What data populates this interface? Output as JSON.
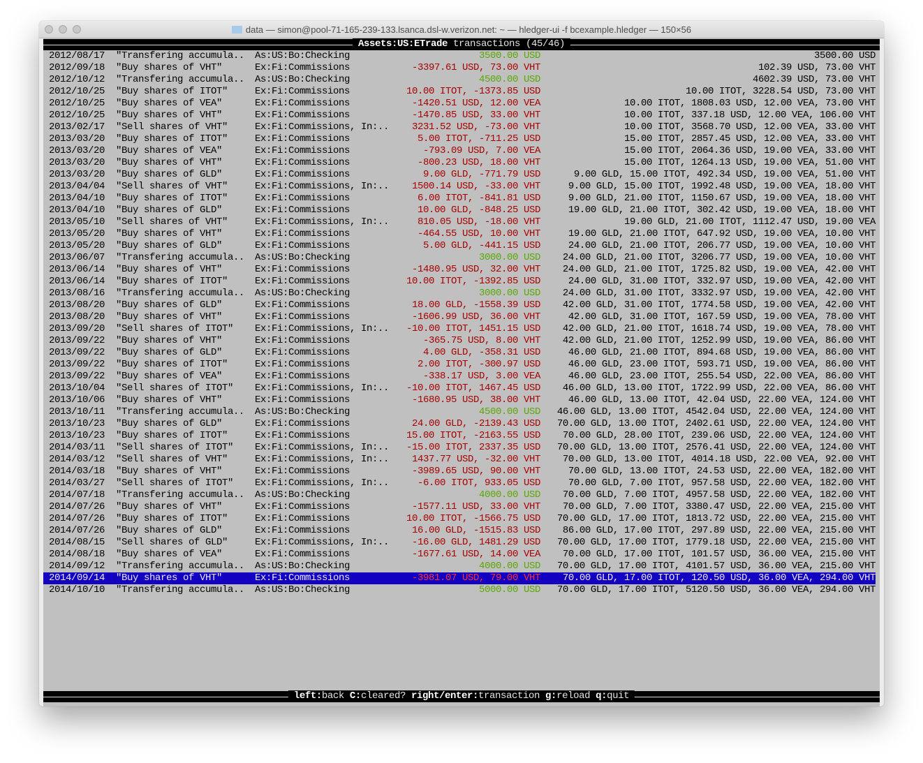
{
  "window": {
    "title": "data — simon@pool-71-165-239-133.lsanca.dsl-w.verizon.net: ~ — hledger-ui -f bcexample.hledger — 150×56"
  },
  "header": {
    "account": "Assets:US:ETrade",
    "suffix": " transactions (45/46)"
  },
  "colors": {
    "positive": "#5aa800",
    "negative": "#a80000",
    "selection": "#1400c0",
    "background": "#c0c0c0"
  },
  "selected_index": 44,
  "rows": [
    {
      "date": "2012/08/17",
      "desc": "\"Transfering accumula..",
      "acct": "As:US:Bo:Checking",
      "amt": "3500.00 USD",
      "bal": "3500.00 USD",
      "sign": "green"
    },
    {
      "date": "2012/09/18",
      "desc": "\"Buy shares of VHT\"",
      "acct": "Ex:Fi:Commissions",
      "amt": "-3397.61 USD, 73.00 VHT",
      "bal": "102.39 USD, 73.00 VHT",
      "sign": "red"
    },
    {
      "date": "2012/10/12",
      "desc": "\"Transfering accumula..",
      "acct": "As:US:Bo:Checking",
      "amt": "4500.00 USD",
      "bal": "4602.39 USD, 73.00 VHT",
      "sign": "green"
    },
    {
      "date": "2012/10/25",
      "desc": "\"Buy shares of ITOT\"",
      "acct": "Ex:Fi:Commissions",
      "amt": "10.00 ITOT, -1373.85 USD",
      "bal": "10.00 ITOT, 3228.54 USD, 73.00 VHT",
      "sign": "red"
    },
    {
      "date": "2012/10/25",
      "desc": "\"Buy shares of VEA\"",
      "acct": "Ex:Fi:Commissions",
      "amt": "-1420.51 USD, 12.00 VEA",
      "bal": "10.00 ITOT, 1808.03 USD, 12.00 VEA, 73.00 VHT",
      "sign": "red"
    },
    {
      "date": "2012/10/25",
      "desc": "\"Buy shares of VHT\"",
      "acct": "Ex:Fi:Commissions",
      "amt": "-1470.85 USD, 33.00 VHT",
      "bal": "10.00 ITOT, 337.18 USD, 12.00 VEA, 106.00 VHT",
      "sign": "red"
    },
    {
      "date": "2013/02/17",
      "desc": "\"Sell shares of VHT\"",
      "acct": "Ex:Fi:Commissions, In:..",
      "amt": "3231.52 USD, -73.00 VHT",
      "bal": "10.00 ITOT, 3568.70 USD, 12.00 VEA, 33.00 VHT",
      "sign": "red"
    },
    {
      "date": "2013/03/20",
      "desc": "\"Buy shares of ITOT\"",
      "acct": "Ex:Fi:Commissions",
      "amt": "5.00 ITOT, -711.25 USD",
      "bal": "15.00 ITOT, 2857.45 USD, 12.00 VEA, 33.00 VHT",
      "sign": "red"
    },
    {
      "date": "2013/03/20",
      "desc": "\"Buy shares of VEA\"",
      "acct": "Ex:Fi:Commissions",
      "amt": "-793.09 USD, 7.00 VEA",
      "bal": "15.00 ITOT, 2064.36 USD, 19.00 VEA, 33.00 VHT",
      "sign": "red"
    },
    {
      "date": "2013/03/20",
      "desc": "\"Buy shares of VHT\"",
      "acct": "Ex:Fi:Commissions",
      "amt": "-800.23 USD, 18.00 VHT",
      "bal": "15.00 ITOT, 1264.13 USD, 19.00 VEA, 51.00 VHT",
      "sign": "red"
    },
    {
      "date": "2013/03/20",
      "desc": "\"Buy shares of GLD\"",
      "acct": "Ex:Fi:Commissions",
      "amt": "9.00 GLD, -771.79 USD",
      "bal": "9.00 GLD, 15.00 ITOT, 492.34 USD, 19.00 VEA, 51.00 VHT",
      "sign": "red"
    },
    {
      "date": "2013/04/04",
      "desc": "\"Sell shares of VHT\"",
      "acct": "Ex:Fi:Commissions, In:..",
      "amt": "1500.14 USD, -33.00 VHT",
      "bal": "9.00 GLD, 15.00 ITOT, 1992.48 USD, 19.00 VEA, 18.00 VHT",
      "sign": "red"
    },
    {
      "date": "2013/04/10",
      "desc": "\"Buy shares of ITOT\"",
      "acct": "Ex:Fi:Commissions",
      "amt": "6.00 ITOT, -841.81 USD",
      "bal": "9.00 GLD, 21.00 ITOT, 1150.67 USD, 19.00 VEA, 18.00 VHT",
      "sign": "red"
    },
    {
      "date": "2013/04/10",
      "desc": "\"Buy shares of GLD\"",
      "acct": "Ex:Fi:Commissions",
      "amt": "10.00 GLD, -848.25 USD",
      "bal": "19.00 GLD, 21.00 ITOT, 302.42 USD, 19.00 VEA, 18.00 VHT",
      "sign": "red"
    },
    {
      "date": "2013/05/10",
      "desc": "\"Sell shares of VHT\"",
      "acct": "Ex:Fi:Commissions, In:..",
      "amt": "810.05 USD, -18.00 VHT",
      "bal": "19.00 GLD, 21.00 ITOT, 1112.47 USD, 19.00 VEA",
      "sign": "red"
    },
    {
      "date": "2013/05/20",
      "desc": "\"Buy shares of VHT\"",
      "acct": "Ex:Fi:Commissions",
      "amt": "-464.55 USD, 10.00 VHT",
      "bal": "19.00 GLD, 21.00 ITOT, 647.92 USD, 19.00 VEA, 10.00 VHT",
      "sign": "red"
    },
    {
      "date": "2013/05/20",
      "desc": "\"Buy shares of GLD\"",
      "acct": "Ex:Fi:Commissions",
      "amt": "5.00 GLD, -441.15 USD",
      "bal": "24.00 GLD, 21.00 ITOT, 206.77 USD, 19.00 VEA, 10.00 VHT",
      "sign": "red"
    },
    {
      "date": "2013/06/07",
      "desc": "\"Transfering accumula..",
      "acct": "As:US:Bo:Checking",
      "amt": "3000.00 USD",
      "bal": "24.00 GLD, 21.00 ITOT, 3206.77 USD, 19.00 VEA, 10.00 VHT",
      "sign": "green"
    },
    {
      "date": "2013/06/14",
      "desc": "\"Buy shares of VHT\"",
      "acct": "Ex:Fi:Commissions",
      "amt": "-1480.95 USD, 32.00 VHT",
      "bal": "24.00 GLD, 21.00 ITOT, 1725.82 USD, 19.00 VEA, 42.00 VHT",
      "sign": "red"
    },
    {
      "date": "2013/06/14",
      "desc": "\"Buy shares of ITOT\"",
      "acct": "Ex:Fi:Commissions",
      "amt": "10.00 ITOT, -1392.85 USD",
      "bal": "24.00 GLD, 31.00 ITOT, 332.97 USD, 19.00 VEA, 42.00 VHT",
      "sign": "red"
    },
    {
      "date": "2013/08/16",
      "desc": "\"Transfering accumula..",
      "acct": "As:US:Bo:Checking",
      "amt": "3000.00 USD",
      "bal": "24.00 GLD, 31.00 ITOT, 3332.97 USD, 19.00 VEA, 42.00 VHT",
      "sign": "green"
    },
    {
      "date": "2013/08/20",
      "desc": "\"Buy shares of GLD\"",
      "acct": "Ex:Fi:Commissions",
      "amt": "18.00 GLD, -1558.39 USD",
      "bal": "42.00 GLD, 31.00 ITOT, 1774.58 USD, 19.00 VEA, 42.00 VHT",
      "sign": "red"
    },
    {
      "date": "2013/08/20",
      "desc": "\"Buy shares of VHT\"",
      "acct": "Ex:Fi:Commissions",
      "amt": "-1606.99 USD, 36.00 VHT",
      "bal": "42.00 GLD, 31.00 ITOT, 167.59 USD, 19.00 VEA, 78.00 VHT",
      "sign": "red"
    },
    {
      "date": "2013/09/20",
      "desc": "\"Sell shares of ITOT\"",
      "acct": "Ex:Fi:Commissions, In:..",
      "amt": "-10.00 ITOT, 1451.15 USD",
      "bal": "42.00 GLD, 21.00 ITOT, 1618.74 USD, 19.00 VEA, 78.00 VHT",
      "sign": "red"
    },
    {
      "date": "2013/09/22",
      "desc": "\"Buy shares of VHT\"",
      "acct": "Ex:Fi:Commissions",
      "amt": "-365.75 USD, 8.00 VHT",
      "bal": "42.00 GLD, 21.00 ITOT, 1252.99 USD, 19.00 VEA, 86.00 VHT",
      "sign": "red"
    },
    {
      "date": "2013/09/22",
      "desc": "\"Buy shares of GLD\"",
      "acct": "Ex:Fi:Commissions",
      "amt": "4.00 GLD, -358.31 USD",
      "bal": "46.00 GLD, 21.00 ITOT, 894.68 USD, 19.00 VEA, 86.00 VHT",
      "sign": "red"
    },
    {
      "date": "2013/09/22",
      "desc": "\"Buy shares of ITOT\"",
      "acct": "Ex:Fi:Commissions",
      "amt": "2.00 ITOT, -300.97 USD",
      "bal": "46.00 GLD, 23.00 ITOT, 593.71 USD, 19.00 VEA, 86.00 VHT",
      "sign": "red"
    },
    {
      "date": "2013/09/22",
      "desc": "\"Buy shares of VEA\"",
      "acct": "Ex:Fi:Commissions",
      "amt": "-338.17 USD, 3.00 VEA",
      "bal": "46.00 GLD, 23.00 ITOT, 255.54 USD, 22.00 VEA, 86.00 VHT",
      "sign": "red"
    },
    {
      "date": "2013/10/04",
      "desc": "\"Sell shares of ITOT\"",
      "acct": "Ex:Fi:Commissions, In:..",
      "amt": "-10.00 ITOT, 1467.45 USD",
      "bal": "46.00 GLD, 13.00 ITOT, 1722.99 USD, 22.00 VEA, 86.00 VHT",
      "sign": "red"
    },
    {
      "date": "2013/10/06",
      "desc": "\"Buy shares of VHT\"",
      "acct": "Ex:Fi:Commissions",
      "amt": "-1680.95 USD, 38.00 VHT",
      "bal": "46.00 GLD, 13.00 ITOT, 42.04 USD, 22.00 VEA, 124.00 VHT",
      "sign": "red"
    },
    {
      "date": "2013/10/11",
      "desc": "\"Transfering accumula..",
      "acct": "As:US:Bo:Checking",
      "amt": "4500.00 USD",
      "bal": "46.00 GLD, 13.00 ITOT, 4542.04 USD, 22.00 VEA, 124.00 VHT",
      "sign": "green"
    },
    {
      "date": "2013/10/23",
      "desc": "\"Buy shares of GLD\"",
      "acct": "Ex:Fi:Commissions",
      "amt": "24.00 GLD, -2139.43 USD",
      "bal": "70.00 GLD, 13.00 ITOT, 2402.61 USD, 22.00 VEA, 124.00 VHT",
      "sign": "red"
    },
    {
      "date": "2013/10/23",
      "desc": "\"Buy shares of ITOT\"",
      "acct": "Ex:Fi:Commissions",
      "amt": "15.00 ITOT, -2163.55 USD",
      "bal": "70.00 GLD, 28.00 ITOT, 239.06 USD, 22.00 VEA, 124.00 VHT",
      "sign": "red"
    },
    {
      "date": "2014/03/11",
      "desc": "\"Sell shares of ITOT\"",
      "acct": "Ex:Fi:Commissions, In:..",
      "amt": "-15.00 ITOT, 2337.35 USD",
      "bal": "70.00 GLD, 13.00 ITOT, 2576.41 USD, 22.00 VEA, 124.00 VHT",
      "sign": "red"
    },
    {
      "date": "2014/03/12",
      "desc": "\"Sell shares of VHT\"",
      "acct": "Ex:Fi:Commissions, In:..",
      "amt": "1437.77 USD, -32.00 VHT",
      "bal": "70.00 GLD, 13.00 ITOT, 4014.18 USD, 22.00 VEA, 92.00 VHT",
      "sign": "red"
    },
    {
      "date": "2014/03/18",
      "desc": "\"Buy shares of VHT\"",
      "acct": "Ex:Fi:Commissions",
      "amt": "-3989.65 USD, 90.00 VHT",
      "bal": "70.00 GLD, 13.00 ITOT, 24.53 USD, 22.00 VEA, 182.00 VHT",
      "sign": "red"
    },
    {
      "date": "2014/03/27",
      "desc": "\"Sell shares of ITOT\"",
      "acct": "Ex:Fi:Commissions, In:..",
      "amt": "-6.00 ITOT, 933.05 USD",
      "bal": "70.00 GLD, 7.00 ITOT, 957.58 USD, 22.00 VEA, 182.00 VHT",
      "sign": "red"
    },
    {
      "date": "2014/07/18",
      "desc": "\"Transfering accumula..",
      "acct": "As:US:Bo:Checking",
      "amt": "4000.00 USD",
      "bal": "70.00 GLD, 7.00 ITOT, 4957.58 USD, 22.00 VEA, 182.00 VHT",
      "sign": "green"
    },
    {
      "date": "2014/07/26",
      "desc": "\"Buy shares of VHT\"",
      "acct": "Ex:Fi:Commissions",
      "amt": "-1577.11 USD, 33.00 VHT",
      "bal": "70.00 GLD, 7.00 ITOT, 3380.47 USD, 22.00 VEA, 215.00 VHT",
      "sign": "red"
    },
    {
      "date": "2014/07/26",
      "desc": "\"Buy shares of ITOT\"",
      "acct": "Ex:Fi:Commissions",
      "amt": "10.00 ITOT, -1566.75 USD",
      "bal": "70.00 GLD, 17.00 ITOT, 1813.72 USD, 22.00 VEA, 215.00 VHT",
      "sign": "red"
    },
    {
      "date": "2014/07/26",
      "desc": "\"Buy shares of GLD\"",
      "acct": "Ex:Fi:Commissions",
      "amt": "16.00 GLD, -1515.83 USD",
      "bal": "86.00 GLD, 17.00 ITOT, 297.89 USD, 22.00 VEA, 215.00 VHT",
      "sign": "red"
    },
    {
      "date": "2014/08/15",
      "desc": "\"Sell shares of GLD\"",
      "acct": "Ex:Fi:Commissions, In:..",
      "amt": "-16.00 GLD, 1481.29 USD",
      "bal": "70.00 GLD, 17.00 ITOT, 1779.18 USD, 22.00 VEA, 215.00 VHT",
      "sign": "red"
    },
    {
      "date": "2014/08/18",
      "desc": "\"Buy shares of VEA\"",
      "acct": "Ex:Fi:Commissions",
      "amt": "-1677.61 USD, 14.00 VEA",
      "bal": "70.00 GLD, 17.00 ITOT, 101.57 USD, 36.00 VEA, 215.00 VHT",
      "sign": "red"
    },
    {
      "date": "2014/09/12",
      "desc": "\"Transfering accumula..",
      "acct": "As:US:Bo:Checking",
      "amt": "4000.00 USD",
      "bal": "70.00 GLD, 17.00 ITOT, 4101.57 USD, 36.00 VEA, 215.00 VHT",
      "sign": "green"
    },
    {
      "date": "2014/09/14",
      "desc": "\"Buy shares of VHT\"",
      "acct": "Ex:Fi:Commissions",
      "amt": "-3981.07 USD, 79.00 VHT",
      "bal": "70.00 GLD, 17.00 ITOT, 120.50 USD, 36.00 VEA, 294.00 VHT",
      "sign": "red"
    },
    {
      "date": "2014/10/10",
      "desc": "\"Transfering accumula..",
      "acct": "As:US:Bo:Checking",
      "amt": "5000.00 USD",
      "bal": "70.00 GLD, 17.00 ITOT, 5120.50 USD, 36.00 VEA, 294.00 VHT",
      "sign": "green"
    }
  ],
  "footer": {
    "keys": [
      {
        "key": "left",
        "action": "back"
      },
      {
        "key": "C",
        "action": "cleared?"
      },
      {
        "key": "right/enter",
        "action": "transaction"
      },
      {
        "key": "g",
        "action": "reload"
      },
      {
        "key": "q",
        "action": "quit"
      }
    ]
  }
}
